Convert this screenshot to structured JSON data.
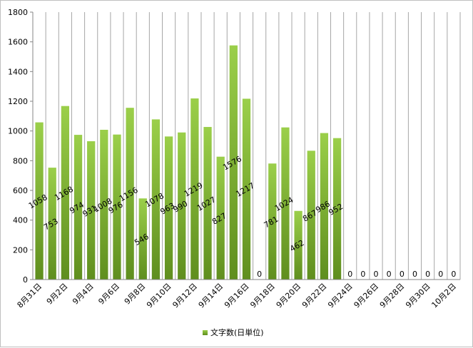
{
  "chart_data": {
    "type": "bar",
    "ylim": [
      0,
      1800
    ],
    "y_ticks": [
      0,
      200,
      400,
      600,
      800,
      1000,
      1200,
      1400,
      1600,
      1800
    ],
    "grid": "vertical",
    "legend_position": "bottom",
    "colors": {
      "bar_top": "#9bcf4a",
      "bar_bottom": "#5f8e1e",
      "grid": "#a6a6a6",
      "axis": "#868686"
    },
    "x_tick_labels": [
      "8月31日",
      "9月2日",
      "9月4日",
      "9月6日",
      "9月8日",
      "9月10日",
      "9月12日",
      "9月14日",
      "9月16日",
      "9月18日",
      "9月20日",
      "9月22日",
      "9月24日",
      "9月26日",
      "9月28日",
      "9月30日",
      "10月2日"
    ],
    "series": [
      {
        "name": "文字数(日単位)",
        "values": [
          1058,
          753,
          1168,
          974,
          931,
          1008,
          976,
          1156,
          546,
          1078,
          963,
          990,
          1219,
          1027,
          827,
          1576,
          1217,
          0,
          781,
          1024,
          462,
          867,
          986,
          952,
          0,
          0,
          0,
          0,
          0,
          0,
          0,
          0,
          0
        ],
        "labels": [
          "1058",
          "753",
          "1168",
          "974",
          "931",
          "1008",
          "976",
          "1156",
          "546",
          "1078",
          "963",
          "990",
          "1219",
          "1027",
          "827",
          "1576",
          "1217",
          "0",
          "781",
          "1024",
          "462",
          "867",
          "986",
          "952",
          "0",
          "0",
          "0",
          "0",
          "0",
          "0",
          "0",
          "0",
          "0"
        ]
      }
    ]
  }
}
